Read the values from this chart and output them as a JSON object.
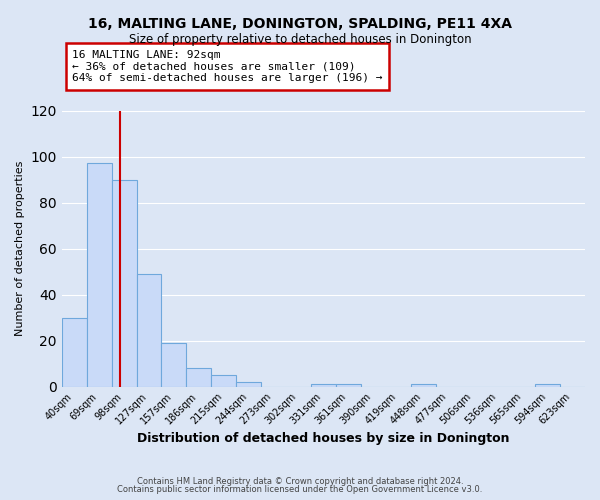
{
  "title": "16, MALTING LANE, DONINGTON, SPALDING, PE11 4XA",
  "subtitle": "Size of property relative to detached houses in Donington",
  "xlabel": "Distribution of detached houses by size in Donington",
  "ylabel": "Number of detached properties",
  "bar_labels": [
    "40sqm",
    "69sqm",
    "98sqm",
    "127sqm",
    "157sqm",
    "186sqm",
    "215sqm",
    "244sqm",
    "273sqm",
    "302sqm",
    "331sqm",
    "361sqm",
    "390sqm",
    "419sqm",
    "448sqm",
    "477sqm",
    "506sqm",
    "536sqm",
    "565sqm",
    "594sqm",
    "623sqm"
  ],
  "bar_values": [
    30,
    97,
    90,
    49,
    19,
    8,
    5,
    2,
    0,
    0,
    1,
    1,
    0,
    0,
    1,
    0,
    0,
    0,
    0,
    1,
    0
  ],
  "bar_color": "#c9daf8",
  "bar_edgecolor": "#6fa8dc",
  "property_line_x": 1.83,
  "ylim": [
    0,
    120
  ],
  "yticks": [
    0,
    20,
    40,
    60,
    80,
    100,
    120
  ],
  "annotation_title": "16 MALTING LANE: 92sqm",
  "annotation_line1": "← 36% of detached houses are smaller (109)",
  "annotation_line2": "64% of semi-detached houses are larger (196) →",
  "annotation_box_color": "#ffffff",
  "annotation_border_color": "#cc0000",
  "line_color": "#cc0000",
  "footer1": "Contains HM Land Registry data © Crown copyright and database right 2024.",
  "footer2": "Contains public sector information licensed under the Open Government Licence v3.0.",
  "background_color": "#dce6f5",
  "plot_bg_color": "#dce6f5",
  "grid_color": "#ffffff",
  "title_fontsize": 10,
  "subtitle_fontsize": 8.5,
  "xlabel_fontsize": 9,
  "ylabel_fontsize": 8,
  "footer_fontsize": 6,
  "annotation_fontsize": 8
}
